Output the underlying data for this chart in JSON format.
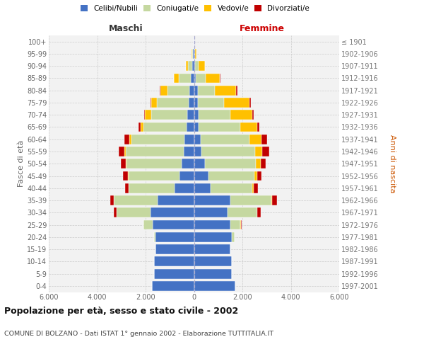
{
  "age_groups": [
    "0-4",
    "5-9",
    "10-14",
    "15-19",
    "20-24",
    "25-29",
    "30-34",
    "35-39",
    "40-44",
    "45-49",
    "50-54",
    "55-59",
    "60-64",
    "65-69",
    "70-74",
    "75-79",
    "80-84",
    "85-89",
    "90-94",
    "95-99",
    "100+"
  ],
  "birth_years": [
    "1997-2001",
    "1992-1996",
    "1987-1991",
    "1982-1986",
    "1977-1981",
    "1972-1976",
    "1967-1971",
    "1962-1966",
    "1957-1961",
    "1952-1956",
    "1947-1951",
    "1942-1946",
    "1937-1941",
    "1932-1936",
    "1927-1931",
    "1922-1926",
    "1917-1921",
    "1912-1916",
    "1907-1911",
    "1902-1906",
    "≤ 1901"
  ],
  "male_celibi": [
    1750,
    1650,
    1650,
    1600,
    1600,
    1700,
    1800,
    1500,
    800,
    600,
    500,
    420,
    380,
    300,
    280,
    220,
    200,
    130,
    80,
    30,
    10
  ],
  "male_coniugati": [
    0,
    0,
    0,
    0,
    50,
    400,
    1400,
    1800,
    1900,
    2100,
    2300,
    2400,
    2200,
    1800,
    1500,
    1300,
    900,
    500,
    180,
    40,
    5
  ],
  "male_vedovi": [
    0,
    0,
    0,
    0,
    0,
    0,
    0,
    0,
    10,
    20,
    30,
    50,
    100,
    100,
    250,
    250,
    300,
    200,
    80,
    20,
    2
  ],
  "male_divorziati": [
    0,
    0,
    0,
    0,
    0,
    0,
    100,
    150,
    130,
    200,
    200,
    250,
    200,
    100,
    40,
    30,
    20,
    10,
    5,
    0,
    0
  ],
  "female_celibi": [
    1700,
    1550,
    1550,
    1500,
    1550,
    1500,
    1400,
    1500,
    700,
    600,
    450,
    320,
    280,
    200,
    200,
    150,
    150,
    80,
    50,
    20,
    5
  ],
  "female_coniugati": [
    0,
    0,
    0,
    0,
    120,
    400,
    1200,
    1700,
    1700,
    1900,
    2100,
    2200,
    2000,
    1700,
    1300,
    1100,
    700,
    400,
    150,
    30,
    3
  ],
  "female_vedovi": [
    0,
    0,
    0,
    0,
    5,
    30,
    20,
    30,
    80,
    100,
    200,
    300,
    500,
    700,
    900,
    1050,
    900,
    600,
    250,
    50,
    3
  ],
  "female_divorziati": [
    0,
    0,
    0,
    0,
    10,
    30,
    130,
    200,
    150,
    200,
    220,
    280,
    250,
    100,
    60,
    50,
    50,
    20,
    10,
    0,
    0
  ],
  "colors": {
    "celibi": "#4472c4",
    "coniugati": "#c5d8a0",
    "vedovi": "#ffc000",
    "divorziati": "#c00000"
  },
  "xlim": 6000,
  "title": "Popolazione per età, sesso e stato civile - 2002",
  "subtitle": "COMUNE DI BOLZANO - Dati ISTAT 1° gennaio 2002 - Elaborazione TUTTITALIA.IT",
  "ylabel_left": "Fasce di età",
  "ylabel_right": "Anni di nascita",
  "xlabel_left": "Maschi",
  "xlabel_right": "Femmine",
  "bg_color": "#f2f2f2",
  "grid_color": "#cccccc"
}
